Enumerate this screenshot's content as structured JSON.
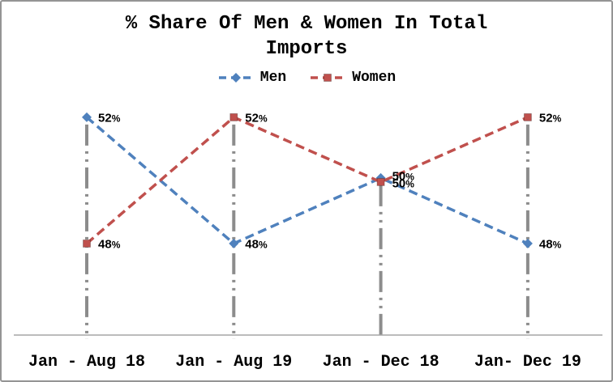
{
  "window": {
    "background": "#ffffff",
    "border_color": "#949494"
  },
  "chart_data": {
    "type": "line",
    "title": "% Share Of Men & Women In Total Imports",
    "categories": [
      "Jan - Aug 18",
      "Jan - Aug 19",
      "Jan - Dec 18",
      "Jan- Dec 19"
    ],
    "series": [
      {
        "name": "Men",
        "values": [
          52,
          48,
          50,
          48
        ],
        "color": "#4F81BD",
        "marker": "diamond",
        "line_style": "dashed"
      },
      {
        "name": "Women",
        "values": [
          48,
          52,
          50,
          52
        ],
        "color": "#C0504D",
        "marker": "square",
        "line_style": "dashed"
      }
    ],
    "data_label_format": "{v}%",
    "data_labels_visible": true,
    "ylim": [
      45,
      55
    ],
    "y_axis_visible": false,
    "grid": false,
    "legend_position": "top",
    "drop_lines": true,
    "drop_line_color": "#8C8C8C",
    "axis_line_color": "#A6A6A6",
    "text_color": "#000000"
  }
}
